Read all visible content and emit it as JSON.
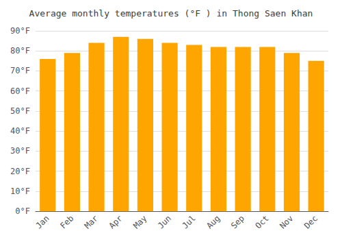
{
  "chart_data": {
    "type": "bar",
    "title": "Average monthly temperatures (°F ) in Thong Saen Khan",
    "categories": [
      "Jan",
      "Feb",
      "Mar",
      "Apr",
      "May",
      "Jun",
      "Jul",
      "Aug",
      "Sep",
      "Oct",
      "Nov",
      "Dec"
    ],
    "values": [
      76,
      79,
      84,
      87,
      86,
      84,
      83,
      82,
      82,
      82,
      79,
      75
    ],
    "color": "#FFA500",
    "ylim": [
      0,
      90
    ],
    "yticks": [
      {
        "value": 0,
        "label": "0°F"
      },
      {
        "value": 10,
        "label": "10°F"
      },
      {
        "value": 20,
        "label": "20°F"
      },
      {
        "value": 30,
        "label": "30°F"
      },
      {
        "value": 40,
        "label": "40°F"
      },
      {
        "value": 50,
        "label": "50°F"
      },
      {
        "value": 60,
        "label": "60°F"
      },
      {
        "value": 70,
        "label": "70°F"
      },
      {
        "value": 80,
        "label": "80°F"
      },
      {
        "value": 90,
        "label": "90°F"
      }
    ],
    "grid": true
  }
}
